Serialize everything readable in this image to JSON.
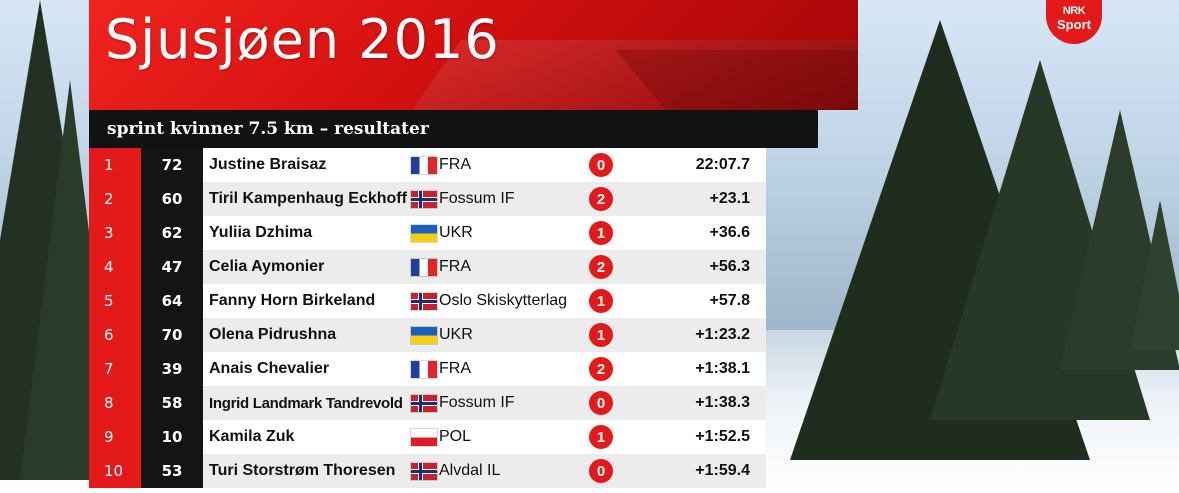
{
  "title": "Sjusjøen 2016",
  "subtitle": "sprint kvinner 7.5 km – resultater",
  "logo": {
    "line1": "NRK",
    "line2": "Sport"
  },
  "colors": {
    "accent": "#e41a1a",
    "bib_bg": "#141414",
    "header_bg": "#111214"
  },
  "results": [
    {
      "rank": "1",
      "bib": "72",
      "name": "Justine Braisaz",
      "flag": "fra",
      "team": "FRA",
      "misses": "0",
      "time": "22:07.7"
    },
    {
      "rank": "2",
      "bib": "60",
      "name": "Tiril Kampenhaug Eckhoff",
      "flag": "nor",
      "team": "Fossum IF",
      "misses": "2",
      "time": "+23.1"
    },
    {
      "rank": "3",
      "bib": "62",
      "name": "Yuliia Dzhima",
      "flag": "ukr",
      "team": "UKR",
      "misses": "1",
      "time": "+36.6"
    },
    {
      "rank": "4",
      "bib": "47",
      "name": "Celia Aymonier",
      "flag": "fra",
      "team": "FRA",
      "misses": "2",
      "time": "+56.3"
    },
    {
      "rank": "5",
      "bib": "64",
      "name": "Fanny Horn Birkeland",
      "flag": "nor",
      "team": "Oslo Skiskytterlag",
      "misses": "1",
      "time": "+57.8"
    },
    {
      "rank": "6",
      "bib": "70",
      "name": "Olena Pidrushna",
      "flag": "ukr",
      "team": "UKR",
      "misses": "1",
      "time": "+1:23.2"
    },
    {
      "rank": "7",
      "bib": "39",
      "name": "Anais Chevalier",
      "flag": "fra",
      "team": "FRA",
      "misses": "2",
      "time": "+1:38.1"
    },
    {
      "rank": "8",
      "bib": "58",
      "name": "Ingrid Landmark Tandrevold",
      "flag": "nor",
      "team": "Fossum IF",
      "misses": "0",
      "time": "+1:38.3"
    },
    {
      "rank": "9",
      "bib": "10",
      "name": "Kamila Zuk",
      "flag": "pol",
      "team": "POL",
      "misses": "1",
      "time": "+1:52.5"
    },
    {
      "rank": "10",
      "bib": "53",
      "name": "Turi Storstrøm Thoresen",
      "flag": "nor",
      "team": "Alvdal IL",
      "misses": "0",
      "time": "+1:59.4"
    }
  ]
}
